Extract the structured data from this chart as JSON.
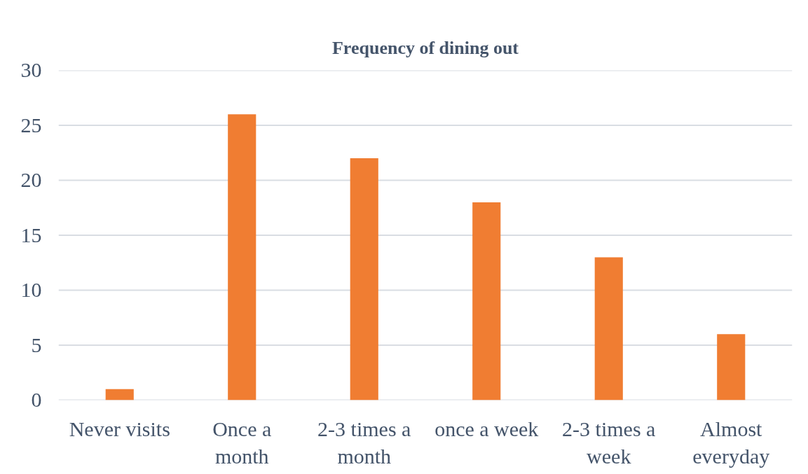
{
  "chart_data": {
    "type": "bar",
    "title": "Frequency of dining out",
    "categories": [
      "Never visits",
      "Once a month",
      "2-3 times a month",
      "once a week",
      "2-3 times a week",
      "Almost everyday"
    ],
    "values": [
      1,
      26,
      22,
      18,
      13,
      6
    ],
    "color": "#f07d32",
    "ylim": [
      0,
      30
    ],
    "yticks": [
      0,
      5,
      10,
      15,
      20,
      25,
      30
    ],
    "grid": "y"
  }
}
